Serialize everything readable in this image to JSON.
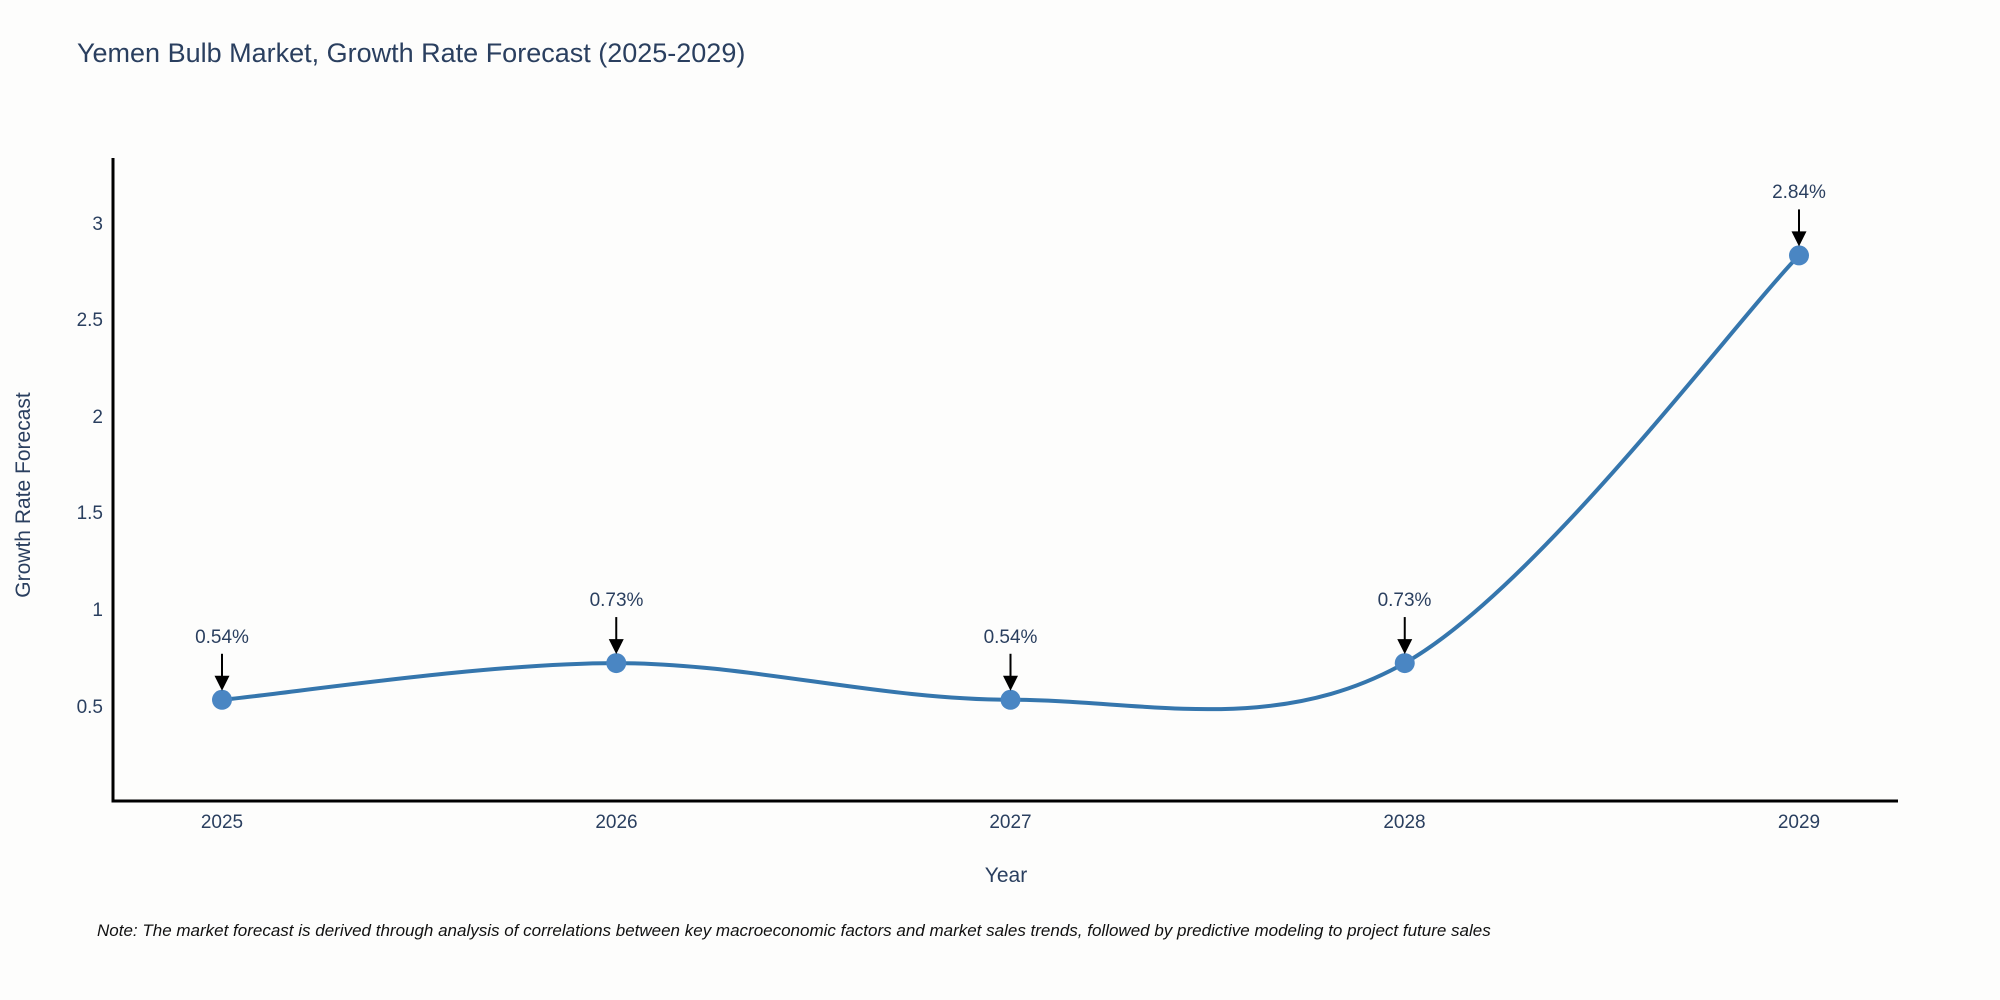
{
  "title": "Yemen Bulb Market, Growth Rate Forecast (2025-2029)",
  "note": "Note: The market forecast is derived through analysis of correlations between key macroeconomic factors and market sales trends, followed by predictive modeling to project future sales",
  "chart_data": {
    "type": "line",
    "line_shape": "spline",
    "title": "Yemen Bulb Market, Growth Rate Forecast (2025-2029)",
    "xlabel": "Year",
    "ylabel": "Growth Rate Forecast",
    "x": [
      2025,
      2026,
      2027,
      2028,
      2029
    ],
    "y": [
      0.54,
      0.73,
      0.54,
      0.73,
      2.84
    ],
    "point_labels": [
      "0.54%",
      "0.73%",
      "0.54%",
      "0.73%",
      "2.84%"
    ],
    "x_tick_labels": [
      "2025",
      "2026",
      "2027",
      "2028",
      "2029"
    ],
    "y_tick_labels": [
      "3",
      "2.5",
      "2",
      "1.5",
      "1",
      "0.5"
    ],
    "y_tick_values": [
      3,
      2.5,
      2,
      1.5,
      1,
      0.5
    ],
    "xlim": [
      2024.72,
      2029.25
    ],
    "ylim": [
      0.01,
      3.34
    ],
    "grid": false,
    "legend": "none",
    "colors": {
      "line": "#3576ad",
      "marker": "#4a86c3",
      "axis": "#000000",
      "text": "#2a3f5f",
      "annotation_arrow": "#000000",
      "background": "#fdfdfc"
    }
  }
}
